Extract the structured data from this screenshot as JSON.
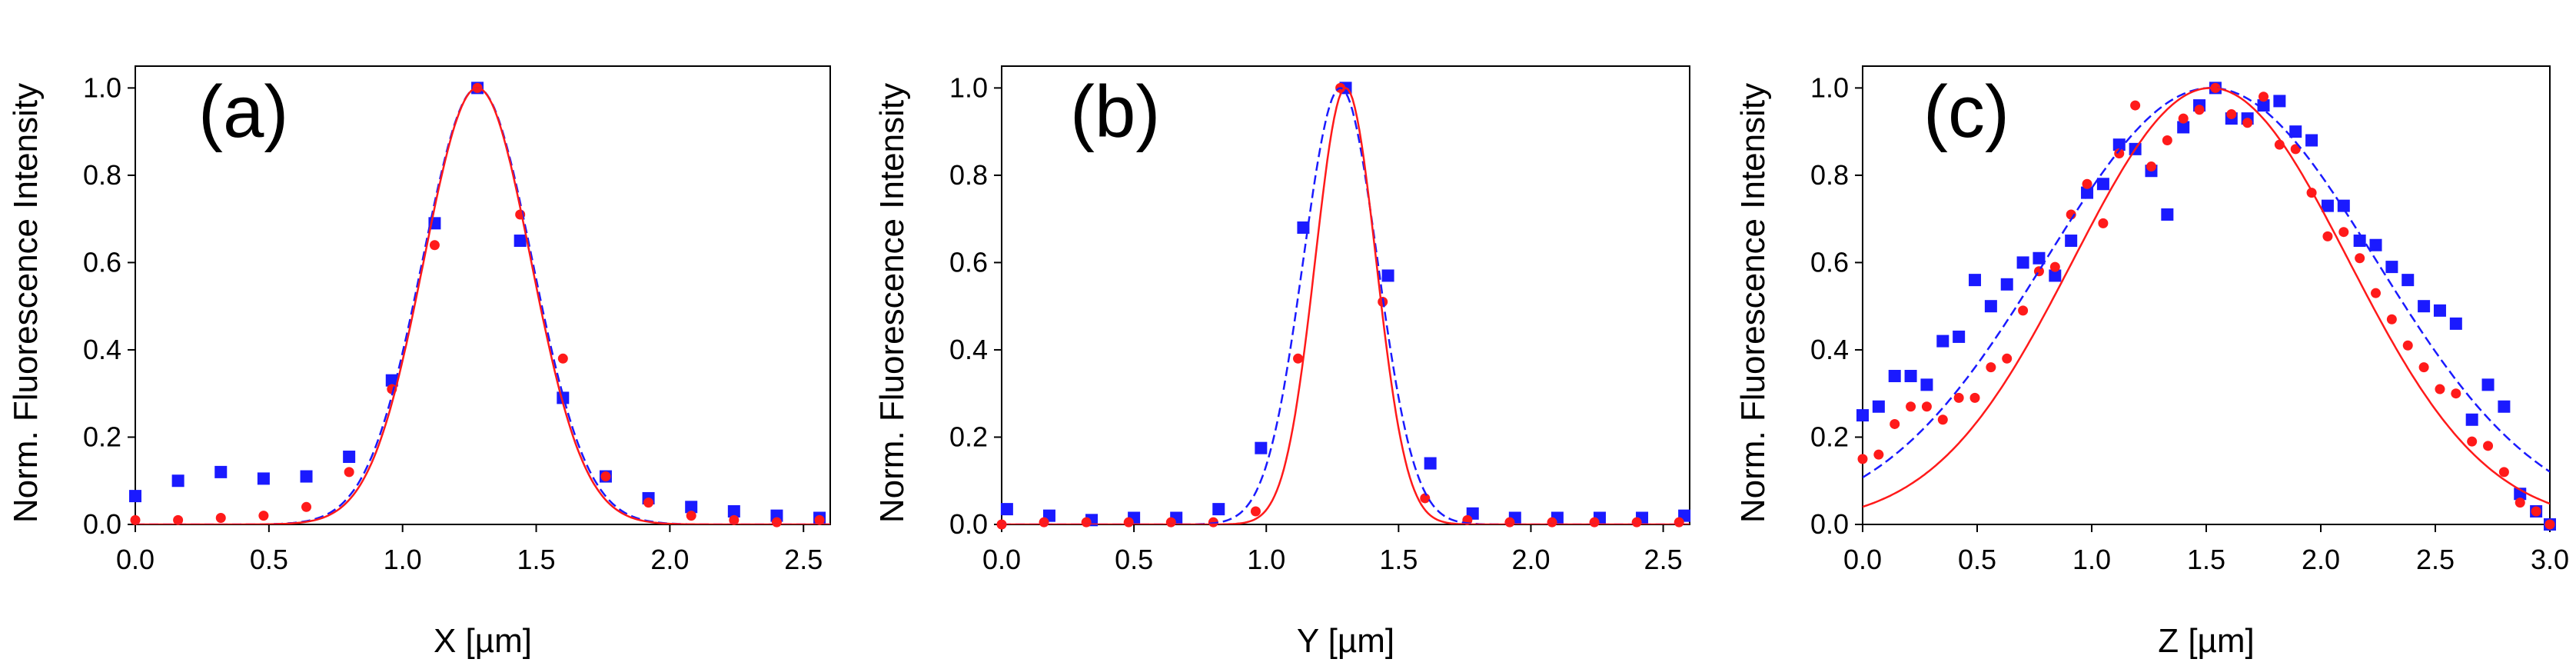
{
  "chart_data": [
    {
      "type": "scatter",
      "panel_label": "(a)",
      "xlabel": "X [µm]",
      "ylabel": "Norm. Fluorescence Intensity",
      "xlim": [
        0,
        2.6
      ],
      "ylim": [
        0,
        1.05
      ],
      "xticks": [
        "0.0",
        "0.5",
        "1.0",
        "1.5",
        "2.0",
        "2.5"
      ],
      "yticks": [
        "0.0",
        "0.2",
        "0.4",
        "0.6",
        "0.8",
        "1.0"
      ],
      "series": [
        {
          "name": "blue-points",
          "kind": "square",
          "color": "#1a1aff",
          "x": [
            0,
            0.16,
            0.32,
            0.48,
            0.64,
            0.8,
            0.96,
            1.12,
            1.28,
            1.44,
            1.6,
            1.76,
            1.92,
            2.08,
            2.24,
            2.4,
            2.56
          ],
          "y": [
            0.065,
            0.1,
            0.12,
            0.105,
            0.11,
            0.155,
            0.33,
            0.69,
            1.0,
            0.65,
            0.29,
            0.11,
            0.06,
            0.04,
            0.03,
            0.02,
            0.015
          ]
        },
        {
          "name": "red-points",
          "kind": "circle",
          "color": "#ff1a1a",
          "x": [
            0,
            0.16,
            0.32,
            0.48,
            0.64,
            0.8,
            0.96,
            1.12,
            1.28,
            1.44,
            1.6,
            1.76,
            1.92,
            2.08,
            2.24,
            2.4,
            2.56
          ],
          "y": [
            0.01,
            0.01,
            0.015,
            0.02,
            0.04,
            0.12,
            0.31,
            0.64,
            1.0,
            0.71,
            0.38,
            0.11,
            0.05,
            0.02,
            0.01,
            0.005,
            0.01
          ]
        },
        {
          "name": "blue-fit",
          "kind": "dashed",
          "color": "#1a1aff",
          "model": "gaussian",
          "center": 1.28,
          "sigma": 0.205,
          "amplitude": 1.0,
          "offset": 0
        },
        {
          "name": "red-fit",
          "kind": "solid",
          "color": "#ff1a1a",
          "model": "gaussian",
          "center": 1.28,
          "sigma": 0.2,
          "amplitude": 1.0,
          "offset": 0
        }
      ]
    },
    {
      "type": "scatter",
      "panel_label": "(b)",
      "xlabel": "Y [µm]",
      "ylabel": "Norm. Fluorescence Intensity",
      "xlim": [
        0,
        2.6
      ],
      "ylim": [
        0,
        1.05
      ],
      "xticks": [
        "0.0",
        "0.5",
        "1.0",
        "1.5",
        "2.0",
        "2.5"
      ],
      "yticks": [
        "0.0",
        "0.2",
        "0.4",
        "0.6",
        "0.8",
        "1.0"
      ],
      "series": [
        {
          "name": "blue-points",
          "kind": "square",
          "color": "#1a1aff",
          "x": [
            0.02,
            0.18,
            0.34,
            0.5,
            0.66,
            0.82,
            0.98,
            1.14,
            1.3,
            1.46,
            1.62,
            1.78,
            1.94,
            2.1,
            2.26,
            2.42,
            2.58
          ],
          "y": [
            0.035,
            0.02,
            0.01,
            0.015,
            0.015,
            0.035,
            0.175,
            0.68,
            1.0,
            0.57,
            0.14,
            0.025,
            0.015,
            0.015,
            0.015,
            0.015,
            0.02
          ]
        },
        {
          "name": "red-points",
          "kind": "circle",
          "color": "#ff1a1a",
          "x": [
            0,
            0.16,
            0.32,
            0.48,
            0.64,
            0.8,
            0.96,
            1.12,
            1.28,
            1.44,
            1.6,
            1.76,
            1.92,
            2.08,
            2.24,
            2.4,
            2.56
          ],
          "y": [
            0.0,
            0.005,
            0.005,
            0.005,
            0.005,
            0.005,
            0.03,
            0.38,
            1.0,
            0.51,
            0.06,
            0.01,
            0.005,
            0.005,
            0.005,
            0.005,
            0.005
          ]
        },
        {
          "name": "blue-fit",
          "kind": "dashed",
          "color": "#1a1aff",
          "model": "gaussian",
          "center": 1.28,
          "sigma": 0.14,
          "amplitude": 1.0,
          "offset": 0
        },
        {
          "name": "red-fit",
          "kind": "solid",
          "color": "#ff1a1a",
          "model": "gaussian",
          "center": 1.3,
          "sigma": 0.115,
          "amplitude": 1.0,
          "offset": 0
        }
      ]
    },
    {
      "type": "scatter",
      "panel_label": "(c)",
      "xlabel": "Z [µm]",
      "ylabel": "Norm. Fluorescence Intensity",
      "xlim": [
        0,
        3.0
      ],
      "ylim": [
        0,
        1.05
      ],
      "xticks": [
        "0.0",
        "0.5",
        "1.0",
        "1.5",
        "2.0",
        "2.5",
        "3.0"
      ],
      "yticks": [
        "0.0",
        "0.2",
        "0.4",
        "0.6",
        "0.8",
        "1.0"
      ],
      "series": [
        {
          "name": "blue-points",
          "kind": "square",
          "color": "#1a1aff",
          "x": [
            0.0,
            0.07,
            0.14,
            0.21,
            0.28,
            0.35,
            0.42,
            0.49,
            0.56,
            0.63,
            0.7,
            0.77,
            0.84,
            0.91,
            0.98,
            1.05,
            1.12,
            1.19,
            1.26,
            1.33,
            1.4,
            1.47,
            1.54,
            1.61,
            1.68,
            1.75,
            1.82,
            1.89,
            1.96,
            2.03,
            2.1,
            2.17,
            2.24,
            2.31,
            2.38,
            2.45,
            2.52,
            2.59,
            2.66,
            2.73,
            2.8,
            2.87,
            2.94,
            3.0
          ],
          "y": [
            0.25,
            0.27,
            0.34,
            0.34,
            0.32,
            0.42,
            0.43,
            0.56,
            0.5,
            0.55,
            0.6,
            0.61,
            0.57,
            0.65,
            0.76,
            0.78,
            0.87,
            0.86,
            0.81,
            0.71,
            0.91,
            0.96,
            1.0,
            0.93,
            0.93,
            0.96,
            0.97,
            0.9,
            0.88,
            0.73,
            0.73,
            0.65,
            0.64,
            0.59,
            0.56,
            0.5,
            0.49,
            0.46,
            0.24,
            0.32,
            0.27,
            0.07,
            0.03,
            0.0
          ]
        },
        {
          "name": "red-points",
          "kind": "circle",
          "color": "#ff1a1a",
          "x": [
            0.0,
            0.07,
            0.14,
            0.21,
            0.28,
            0.35,
            0.42,
            0.49,
            0.56,
            0.63,
            0.7,
            0.77,
            0.84,
            0.91,
            0.98,
            1.05,
            1.12,
            1.19,
            1.26,
            1.33,
            1.4,
            1.47,
            1.54,
            1.61,
            1.68,
            1.75,
            1.82,
            1.89,
            1.96,
            2.03,
            2.1,
            2.17,
            2.24,
            2.31,
            2.38,
            2.45,
            2.52,
            2.59,
            2.66,
            2.73,
            2.8,
            2.87,
            2.94,
            3.0
          ],
          "y": [
            0.15,
            0.16,
            0.23,
            0.27,
            0.27,
            0.24,
            0.29,
            0.29,
            0.36,
            0.38,
            0.49,
            0.58,
            0.59,
            0.71,
            0.78,
            0.69,
            0.85,
            0.96,
            0.82,
            0.88,
            0.93,
            0.95,
            1.0,
            0.94,
            0.92,
            0.98,
            0.87,
            0.86,
            0.76,
            0.66,
            0.67,
            0.61,
            0.53,
            0.47,
            0.41,
            0.36,
            0.31,
            0.3,
            0.19,
            0.18,
            0.12,
            0.05,
            0.03,
            0.0
          ]
        },
        {
          "name": "blue-fit",
          "kind": "dashed",
          "color": "#1a1aff",
          "model": "gaussian",
          "center": 1.52,
          "sigma": 0.72,
          "amplitude": 1.0,
          "offset": 0
        },
        {
          "name": "red-fit",
          "kind": "solid",
          "color": "#ff1a1a",
          "model": "gaussian",
          "center": 1.52,
          "sigma": 0.6,
          "amplitude": 1.0,
          "offset": 0
        }
      ]
    }
  ]
}
